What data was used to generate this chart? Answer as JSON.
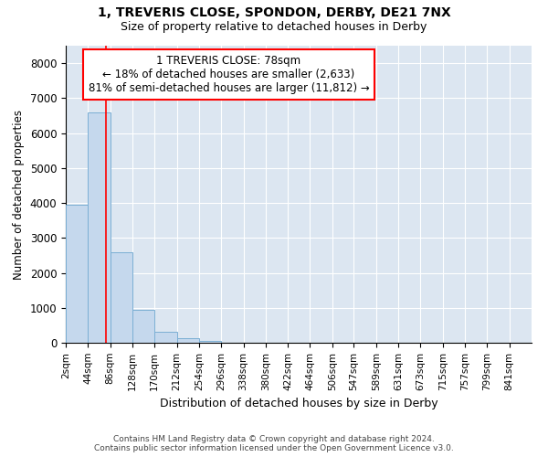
{
  "title_line1": "1, TREVERIS CLOSE, SPONDON, DERBY, DE21 7NX",
  "title_line2": "Size of property relative to detached houses in Derby",
  "xlabel": "Distribution of detached houses by size in Derby",
  "ylabel": "Number of detached properties",
  "bar_values": [
    3950,
    6600,
    2600,
    950,
    325,
    125,
    50,
    0,
    0,
    0,
    0,
    0,
    0,
    0,
    0,
    0,
    0,
    0,
    0
  ],
  "bar_left_edges": [
    2,
    44,
    86,
    128,
    170,
    212,
    254,
    296,
    338,
    380,
    422,
    464,
    506,
    547,
    589,
    631,
    673,
    715,
    757
  ],
  "bin_width": 42,
  "tick_labels": [
    "2sqm",
    "44sqm",
    "86sqm",
    "128sqm",
    "170sqm",
    "212sqm",
    "254sqm",
    "296sqm",
    "338sqm",
    "380sqm",
    "422sqm",
    "464sqm",
    "506sqm",
    "547sqm",
    "589sqm",
    "631sqm",
    "673sqm",
    "715sqm",
    "757sqm",
    "799sqm",
    "841sqm"
  ],
  "tick_positions": [
    2,
    44,
    86,
    128,
    170,
    212,
    254,
    296,
    338,
    380,
    422,
    464,
    506,
    547,
    589,
    631,
    673,
    715,
    757,
    799,
    841
  ],
  "red_line_x": 78,
  "annotation_text": "1 TREVERIS CLOSE: 78sqm\n← 18% of detached houses are smaller (2,633)\n81% of semi-detached houses are larger (11,812) →",
  "ylim": [
    0,
    8500
  ],
  "yticks": [
    0,
    1000,
    2000,
    3000,
    4000,
    5000,
    6000,
    7000,
    8000
  ],
  "bar_color": "#c5d8ed",
  "bar_edge_color": "#7bafd4",
  "background_color": "#dce6f1",
  "annotation_box_color": "white",
  "annotation_box_edge": "red",
  "red_line_color": "red",
  "footer_line1": "Contains HM Land Registry data © Crown copyright and database right 2024.",
  "footer_line2": "Contains public sector information licensed under the Open Government Licence v3.0."
}
